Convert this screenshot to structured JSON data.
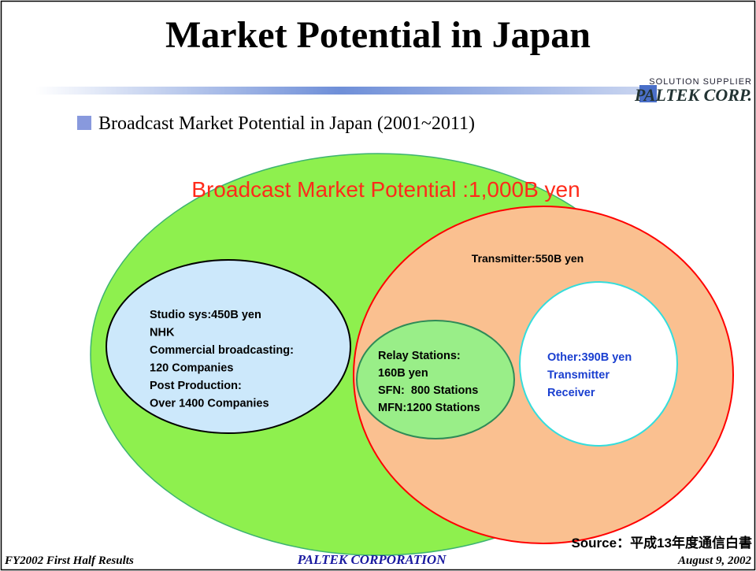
{
  "header": {
    "title": "Market Potential in Japan",
    "logo_tagline": "SOLUTION SUPPLIER",
    "logo_name": "PALTEK CORP."
  },
  "bullet": "Broadcast Market Potential in Japan (2001~2011)",
  "diagram": {
    "outer": {
      "label": "Broadcast Market Potential :1,000B yen"
    },
    "transmitter": {
      "label": "Transmitter:550B yen"
    },
    "studio": {
      "lines": [
        "Studio sys:450B yen",
        "NHK",
        "Commercial broadcasting:",
        "120 Companies",
        "Post Production:",
        "Over 1400 Companies"
      ]
    },
    "relay": {
      "lines": [
        "Relay Stations:",
        "160B yen",
        "SFN:  800 Stations",
        "MFN:1200 Stations"
      ]
    },
    "other": {
      "lines": [
        "Other:390B yen",
        "Transmitter",
        "Receiver"
      ]
    }
  },
  "source": "Source：平成13年度通信白書",
  "footer": {
    "left": "FY2002 First Half Results",
    "center": "PALTEK CORPORATION",
    "right": "August 9, 2002"
  }
}
